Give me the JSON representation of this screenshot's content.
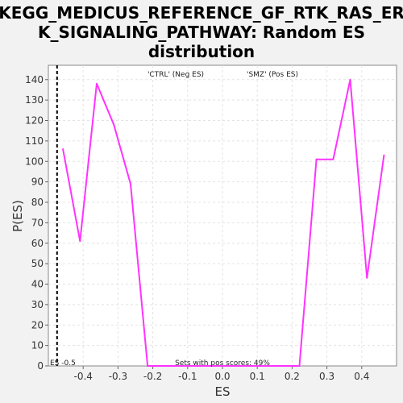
{
  "chart_data": {
    "type": "line",
    "title_lines": [
      "KEGG_MEDICUS_REFERENCE_GF_RTK_RAS_ER",
      "K_SIGNALING_PATHWAY: Random ES",
      "distribution"
    ],
    "xlabel": "ES",
    "ylabel": "P(ES)",
    "xlim": [
      -0.5,
      0.5
    ],
    "ylim": [
      0,
      147
    ],
    "x_ticks": [
      -0.4,
      -0.3,
      -0.2,
      -0.1,
      0.0,
      0.1,
      0.2,
      0.3,
      0.4
    ],
    "x_tick_labels": [
      "-0.4",
      "-0.3",
      "-0.2",
      "-0.1",
      "0.0",
      "0.1",
      "0.2",
      "0.3",
      "0.4"
    ],
    "y_ticks": [
      0,
      10,
      20,
      30,
      40,
      50,
      60,
      70,
      80,
      90,
      100,
      110,
      120,
      130,
      140
    ],
    "y_tick_labels": [
      "0",
      "10",
      "20",
      "30",
      "40",
      "50",
      "60",
      "70",
      "80",
      "90",
      "100",
      "110",
      "120",
      "130",
      "140"
    ],
    "grid": true,
    "series": [
      {
        "color": "#ff33ff",
        "x": [
          -0.458,
          -0.409,
          -0.361,
          -0.312,
          -0.264,
          -0.215,
          -0.167,
          -0.118,
          -0.07,
          -0.021,
          0.027,
          0.076,
          0.124,
          0.173,
          0.221,
          0.27,
          0.318,
          0.367,
          0.415,
          0.464
        ],
        "y": [
          106,
          61,
          138,
          118,
          89,
          0,
          0,
          0,
          0,
          0,
          0,
          0,
          0,
          0,
          0,
          101,
          101,
          140,
          43,
          103
        ]
      }
    ],
    "threshold_line": {
      "x": -0.475,
      "label": "ES -0.5",
      "color": "#000000"
    },
    "annotations": {
      "neg_label": "'CTRL' (Neg ES)",
      "neg_color": "#0000cc",
      "pos_label": "'SMZ' (Pos ES)",
      "pos_color": "#cc0000",
      "bottom_note": "Sets with pos scores: 49%"
    }
  }
}
